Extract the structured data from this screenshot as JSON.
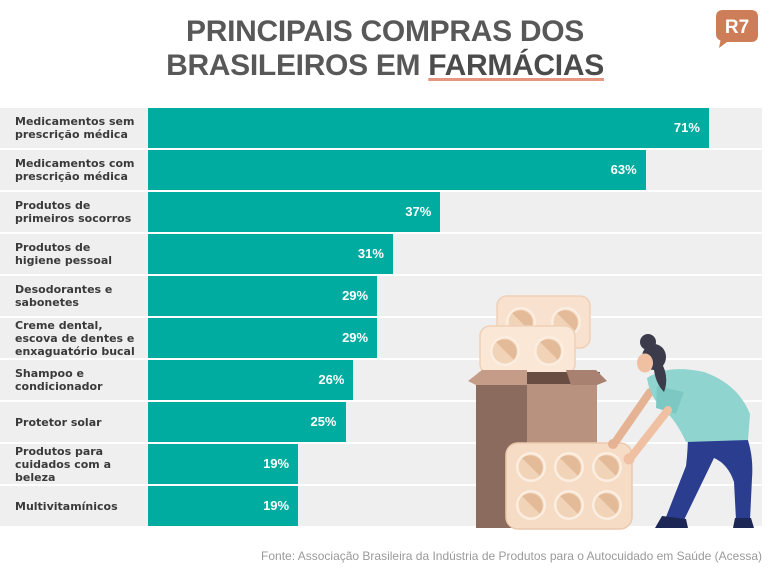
{
  "logo": {
    "text": "R7"
  },
  "colors": {
    "bar": "#00ab9f",
    "row_background": "#efefef",
    "title": "#585858",
    "title_highlight": "#4b4b4b",
    "highlight_underline": "#e69580",
    "logo": "#cd7d57",
    "label": "#3a3a3a",
    "value_label": "#ffffff",
    "source": "#9a9a9a"
  },
  "chart_data": {
    "type": "bar",
    "orientation": "horizontal",
    "grid": false,
    "title": {
      "line1": "PRINCIPAIS COMPRAS DOS",
      "line2": "BRASILEIROS EM",
      "highlight": "FARMÁCIAS"
    },
    "categories": [
      "Medicamentos sem\nprescrição médica",
      "Medicamentos com\nprescrição médica",
      "Produtos de\nprimeiros socorros",
      "Produtos de\nhigiene pessoal",
      "Desodorantes e\nsabonetes",
      "Creme dental,\nescova de dentes e\nenxaguatório bucal",
      "Shampoo e\ncondicionador",
      "Protetor solar",
      "Produtos para\ncuidados com a\nbeleza",
      "Multivitamínicos"
    ],
    "values": [
      71,
      63,
      37,
      31,
      29,
      29,
      26,
      25,
      19,
      19
    ],
    "value_labels": [
      "71%",
      "63%",
      "37%",
      "31%",
      "29%",
      "29%",
      "26%",
      "25%",
      "19%",
      "19%"
    ],
    "source": "Fonte: Associação Brasileira da Indústria de Produtos para o Autocuidado em Saúde (Acessa)"
  },
  "illustration": {
    "icons": [
      "blister-pack-icon",
      "pill-icon",
      "cardboard-box-icon",
      "woman-figure"
    ]
  }
}
